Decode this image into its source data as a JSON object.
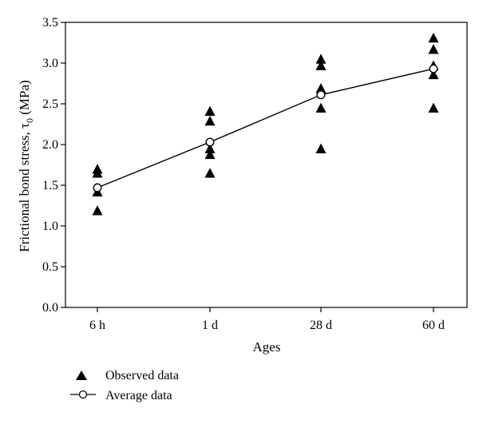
{
  "chart_data": {
    "type": "scatter",
    "categories": [
      "6 h",
      "1 d",
      "28 d",
      "60 d"
    ],
    "xlabel": "Ages",
    "ylabel": "Frictional bond stress, τ",
    "ylabel_subscript": "0",
    "ylabel_unit": " (MPa)",
    "ylim": [
      0,
      3.5
    ],
    "yticks": [
      "0.0",
      "0.5",
      "1.0",
      "1.5",
      "2.0",
      "2.5",
      "3.0",
      "3.5"
    ],
    "grid": false,
    "legend_position": "bottom-left",
    "series": [
      {
        "name": "Observed data",
        "marker": "filled-triangle",
        "color": "#000000",
        "points": [
          {
            "x": "6 h",
            "y": 1.7
          },
          {
            "x": "6 h",
            "y": 1.65
          },
          {
            "x": "6 h",
            "y": 1.42
          },
          {
            "x": "6 h",
            "y": 1.19
          },
          {
            "x": "1 d",
            "y": 2.41
          },
          {
            "x": "1 d",
            "y": 2.29
          },
          {
            "x": "1 d",
            "y": 1.95
          },
          {
            "x": "1 d",
            "y": 1.88
          },
          {
            "x": "1 d",
            "y": 1.65
          },
          {
            "x": "28 d",
            "y": 3.05
          },
          {
            "x": "28 d",
            "y": 2.97
          },
          {
            "x": "28 d",
            "y": 2.69
          },
          {
            "x": "28 d",
            "y": 2.45
          },
          {
            "x": "28 d",
            "y": 1.95
          },
          {
            "x": "60 d",
            "y": 3.31
          },
          {
            "x": "60 d",
            "y": 3.17
          },
          {
            "x": "60 d",
            "y": 2.97
          },
          {
            "x": "60 d",
            "y": 2.86
          },
          {
            "x": "60 d",
            "y": 2.45
          }
        ]
      },
      {
        "name": "Average data",
        "marker": "open-circle-line",
        "color": "#000000",
        "values": [
          1.47,
          2.03,
          2.61,
          2.93
        ]
      }
    ]
  }
}
